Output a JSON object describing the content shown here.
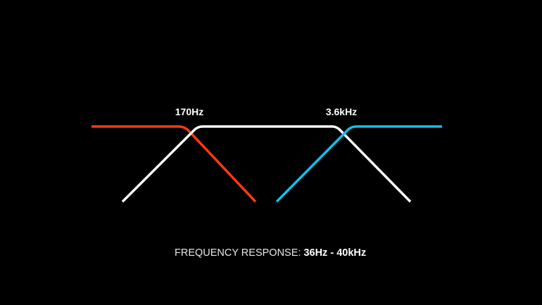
{
  "crossovers": [
    {
      "label": "170Hz"
    },
    {
      "label": "3.6kHz"
    }
  ],
  "bands": [
    {
      "role": "low",
      "color": "#ff3a10"
    },
    {
      "role": "mid",
      "color": "#ffffff"
    },
    {
      "role": "high",
      "color": "#10c0ea"
    }
  ],
  "footer": {
    "prefix": "FREQUENCY RESPONSE: ",
    "range": "36Hz - 40kHz"
  }
}
